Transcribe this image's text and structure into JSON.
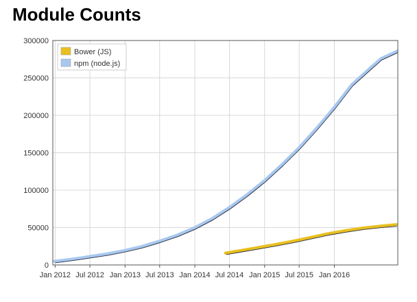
{
  "chart_data": {
    "type": "line",
    "title": "Module Counts",
    "xlabel": "",
    "ylabel": "",
    "xlim": [
      "2011-12-20",
      "2016-11-28"
    ],
    "ylim": [
      0,
      300000
    ],
    "y_ticks": [
      0,
      50000,
      100000,
      150000,
      200000,
      250000,
      300000
    ],
    "x_ticks": [
      {
        "date": "2012-01-01",
        "label": "Jan 2012"
      },
      {
        "date": "2012-07-01",
        "label": "Jul 2012"
      },
      {
        "date": "2013-01-01",
        "label": "Jan 2013"
      },
      {
        "date": "2013-07-01",
        "label": "Jul 2013"
      },
      {
        "date": "2014-01-01",
        "label": "Jan 2014"
      },
      {
        "date": "2014-07-01",
        "label": "Jul 2014"
      },
      {
        "date": "2015-01-01",
        "label": "Jan 2015"
      },
      {
        "date": "2015-07-01",
        "label": "Jul 2015"
      },
      {
        "date": "2016-01-01",
        "label": "Jan 2016"
      }
    ],
    "grid": true,
    "legend_position": "top-left",
    "series": [
      {
        "name": "Bower (JS)",
        "color": "#e8c020",
        "points": [
          [
            "2014-06-10",
            16000
          ],
          [
            "2014-09-01",
            19500
          ],
          [
            "2014-12-01",
            23500
          ],
          [
            "2015-03-01",
            27500
          ],
          [
            "2015-06-01",
            32000
          ],
          [
            "2015-09-01",
            37000
          ],
          [
            "2015-12-01",
            42000
          ],
          [
            "2016-03-01",
            46000
          ],
          [
            "2016-06-01",
            49500
          ],
          [
            "2016-09-01",
            52000
          ],
          [
            "2016-11-20",
            54000
          ]
        ]
      },
      {
        "name": "npm (node.js)",
        "color": "#a8c8f0",
        "points": [
          [
            "2011-12-28",
            5000
          ],
          [
            "2012-04-01",
            8000
          ],
          [
            "2012-07-01",
            11500
          ],
          [
            "2012-10-01",
            15000
          ],
          [
            "2013-01-01",
            19500
          ],
          [
            "2013-04-01",
            25000
          ],
          [
            "2013-07-01",
            32000
          ],
          [
            "2013-10-01",
            40000
          ],
          [
            "2014-01-01",
            50000
          ],
          [
            "2014-04-01",
            62000
          ],
          [
            "2014-07-01",
            77000
          ],
          [
            "2014-10-01",
            94000
          ],
          [
            "2015-01-01",
            113000
          ],
          [
            "2015-04-01",
            134000
          ],
          [
            "2015-07-01",
            157000
          ],
          [
            "2015-10-01",
            183000
          ],
          [
            "2016-01-01",
            211000
          ],
          [
            "2016-04-01",
            241000
          ],
          [
            "2016-07-01",
            262000
          ],
          [
            "2016-09-01",
            276000
          ],
          [
            "2016-11-25",
            286000
          ]
        ]
      }
    ]
  }
}
